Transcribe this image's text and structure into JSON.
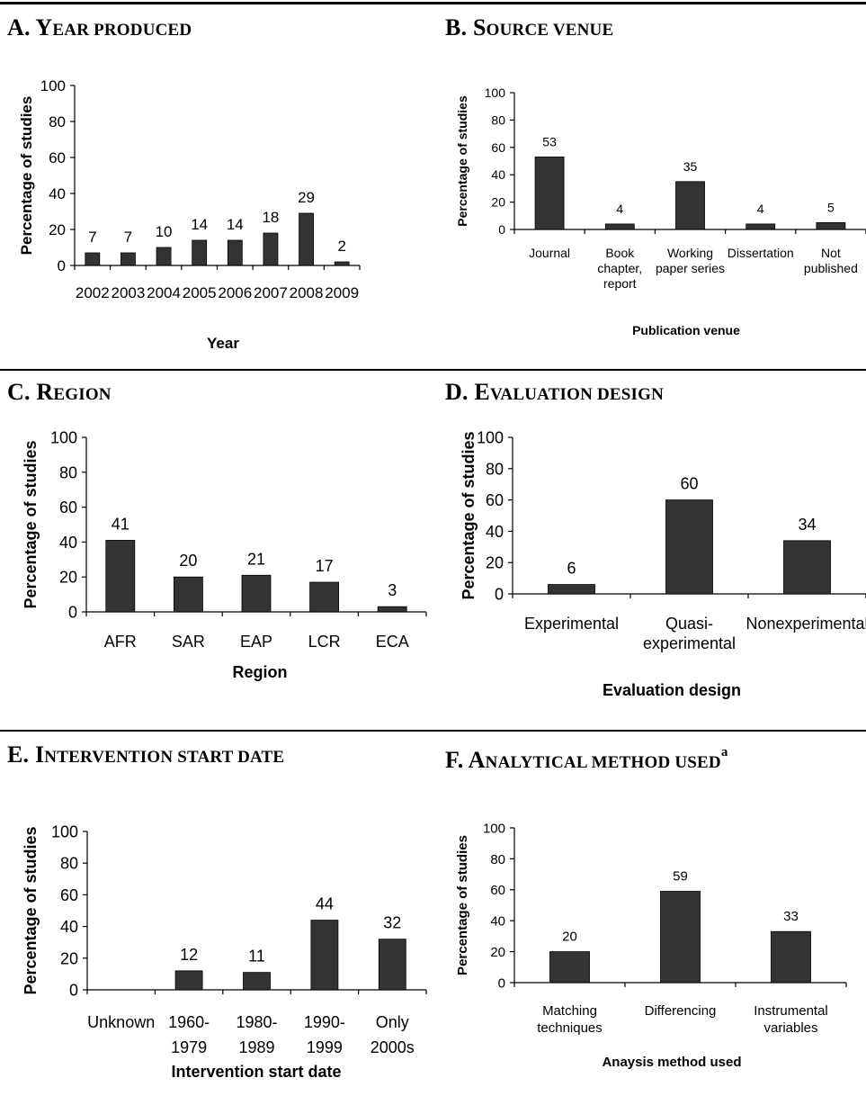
{
  "panels": [
    {
      "id": "A",
      "label": "A. ",
      "title_first": "Y",
      "title_rest": "EAR PRODUCED",
      "sup": ""
    },
    {
      "id": "B",
      "label": "B. ",
      "title_first": "S",
      "title_rest": "OURCE VENUE",
      "sup": ""
    },
    {
      "id": "C",
      "label": "C. ",
      "title_first": "R",
      "title_rest": "EGION",
      "sup": ""
    },
    {
      "id": "D",
      "label": "D. ",
      "title_first": "E",
      "title_rest": "VALUATION DESIGN",
      "sup": ""
    },
    {
      "id": "E",
      "label": "E. ",
      "title_first": "I",
      "title_rest": "NTERVENTION START DATE",
      "sup": ""
    },
    {
      "id": "F",
      "label": "F. ",
      "title_first": "A",
      "title_rest": "NALYTICAL METHOD USED",
      "sup": "a"
    }
  ],
  "chart_data": [
    {
      "id": "A",
      "type": "bar",
      "categories": [
        [
          "2002"
        ],
        [
          "2003"
        ],
        [
          "2004"
        ],
        [
          "2005"
        ],
        [
          "2006"
        ],
        [
          "2007"
        ],
        [
          "2008"
        ],
        [
          "2009"
        ]
      ],
      "values": [
        7,
        7,
        10,
        14,
        14,
        18,
        29,
        2
      ],
      "data_labels": [
        "7",
        "7",
        "10",
        "14",
        "14",
        "18",
        "29",
        "2"
      ],
      "ylabel": "Percentage of studies",
      "xlabel": "Year",
      "ylim": [
        0,
        100
      ],
      "yticks": [
        0,
        20,
        40,
        60,
        80,
        100
      ],
      "bar_color": "#333333"
    },
    {
      "id": "B",
      "type": "bar",
      "categories": [
        [
          "Journal"
        ],
        [
          "Book",
          "chapter,",
          "report"
        ],
        [
          "Working",
          "paper series"
        ],
        [
          "Dissertation"
        ],
        [
          "Not",
          "published"
        ]
      ],
      "values": [
        53,
        4,
        35,
        4,
        5
      ],
      "data_labels": [
        "53",
        "4",
        "35",
        "4",
        "5"
      ],
      "ylabel": "Percentage of studies",
      "xlabel": "Publication venue",
      "ylim": [
        0,
        100
      ],
      "yticks": [
        0,
        20,
        40,
        60,
        80,
        100
      ],
      "bar_color": "#333333"
    },
    {
      "id": "C",
      "type": "bar",
      "categories": [
        [
          "AFR"
        ],
        [
          "SAR"
        ],
        [
          "EAP"
        ],
        [
          "LCR"
        ],
        [
          "ECA"
        ]
      ],
      "values": [
        41,
        20,
        21,
        17,
        3
      ],
      "data_labels": [
        "41",
        "20",
        "21",
        "17",
        "3"
      ],
      "ylabel": "Percentage of studies",
      "xlabel": "Region",
      "ylim": [
        0,
        100
      ],
      "yticks": [
        0,
        20,
        40,
        60,
        80,
        100
      ],
      "bar_color": "#333333"
    },
    {
      "id": "D",
      "type": "bar",
      "categories": [
        [
          "Experimental"
        ],
        [
          "Quasi-",
          "experimental"
        ],
        [
          "Nonexperimental"
        ]
      ],
      "values": [
        6,
        60,
        34
      ],
      "data_labels": [
        "6",
        "60",
        "34"
      ],
      "ylabel": "Percentage of studies",
      "xlabel": "Evaluation design",
      "ylim": [
        0,
        100
      ],
      "yticks": [
        0,
        20,
        40,
        60,
        80,
        100
      ],
      "bar_color": "#333333"
    },
    {
      "id": "E",
      "type": "bar",
      "categories": [
        [
          "Unknown"
        ],
        [
          "1960-",
          "1979"
        ],
        [
          "1980-",
          "1989"
        ],
        [
          "1990-",
          "1999"
        ],
        [
          "Only",
          "2000s"
        ]
      ],
      "values": [
        0,
        12,
        11,
        44,
        32
      ],
      "data_labels": [
        "",
        "12",
        "11",
        "44",
        "32"
      ],
      "ylabel": "Percentage of studies",
      "xlabel": "Intervention start date",
      "ylim": [
        0,
        100
      ],
      "yticks": [
        0,
        20,
        40,
        60,
        80,
        100
      ],
      "bar_color": "#333333"
    },
    {
      "id": "F",
      "type": "bar",
      "categories": [
        [
          "Matching",
          "techniques"
        ],
        [
          "Differencing"
        ],
        [
          "Instrumental",
          "variables"
        ]
      ],
      "values": [
        20,
        59,
        33
      ],
      "data_labels": [
        "20",
        "59",
        "33"
      ],
      "ylabel": "Percentage of studies",
      "xlabel": "Anaysis method used",
      "ylim": [
        0,
        100
      ],
      "yticks": [
        0,
        20,
        40,
        60,
        80,
        100
      ],
      "bar_color": "#333333"
    }
  ]
}
